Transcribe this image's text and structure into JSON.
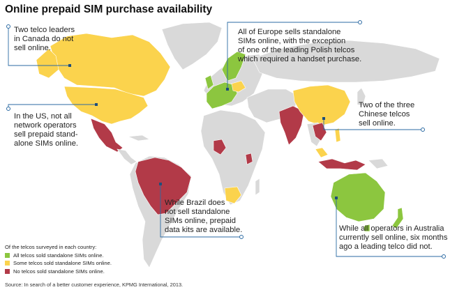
{
  "title": "Online prepaid SIM purchase availability",
  "colors": {
    "all": "#8cc63f",
    "some": "#fbd34d",
    "none": "#b23a48",
    "other_land": "#d9d9d9",
    "leader_line": "#2b6aa3"
  },
  "callouts": {
    "canada": [
      "Two telco leaders",
      "in Canada do not",
      "sell online."
    ],
    "us": [
      "In the US, not all",
      "network operators",
      "sell prepaid stand-",
      "alone SIMs online."
    ],
    "europe": [
      "All of Europe sells standalone",
      "SIMs online, with the exception",
      "of one of the leading Polish telcos",
      "which required a handset purchase."
    ],
    "china": [
      "Two of the three",
      "Chinese telcos",
      "sell online."
    ],
    "brazil": [
      "While Brazil does",
      "not sell standalone",
      "SIMs online, prepaid",
      "data kits are available."
    ],
    "australia": [
      "While all operators in Australia",
      "currently sell online, six months",
      "ago a leading telco did not."
    ]
  },
  "legend": {
    "heading": "Of the telcos surveyed in each country:",
    "items": [
      {
        "label": "All telcos sold standalone SIMs online.",
        "category": "all"
      },
      {
        "label": "Some telcos sold standalone SIMs online.",
        "category": "some"
      },
      {
        "label": "No telcos sold standalone SIMs online.",
        "category": "none"
      }
    ]
  },
  "source": "Source: In search of a better customer experience, KPMG International, 2013."
}
